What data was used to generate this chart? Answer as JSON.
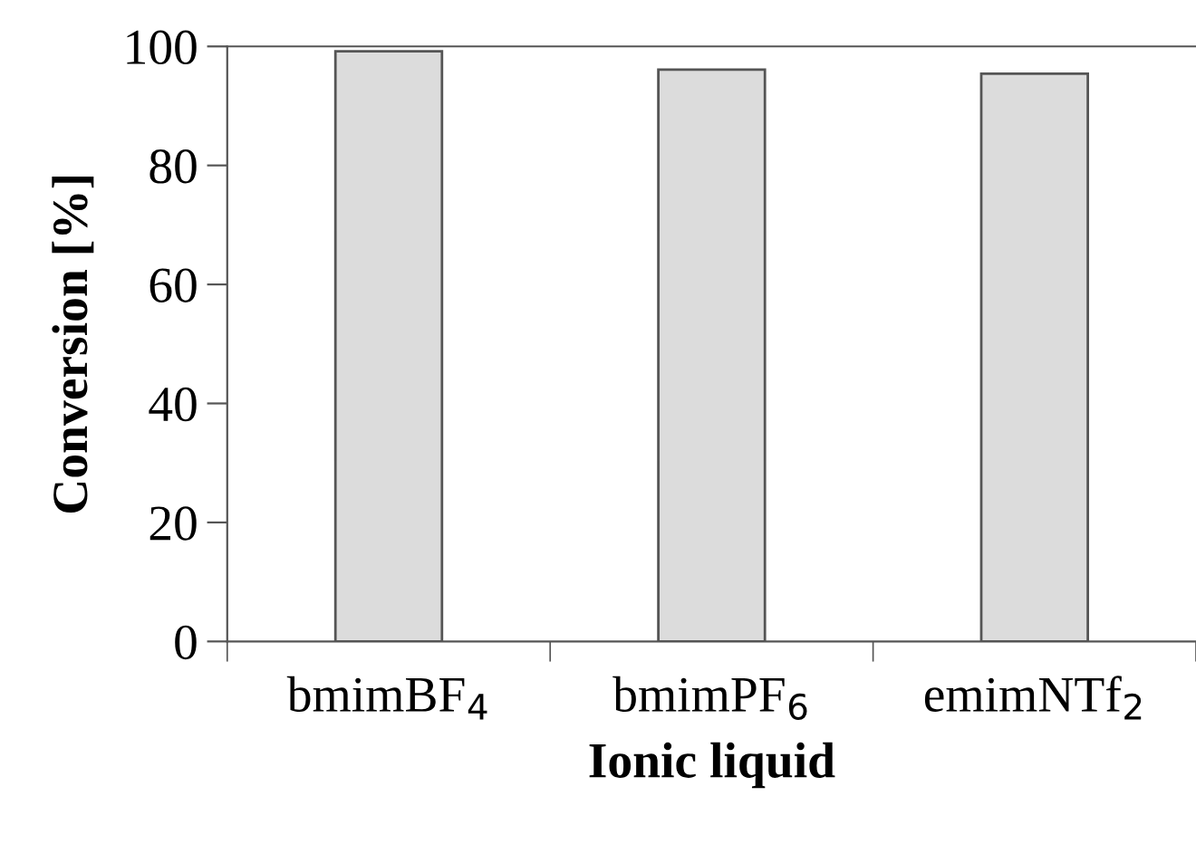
{
  "chart_data": {
    "type": "bar",
    "xlabel": "Ionic liquid",
    "ylabel": "Conversion [%]",
    "categories": [
      "bmimBF$_{4}$",
      "bmimPF$_{6}$",
      "emimNTf$_{2}$"
    ],
    "values": [
      99.2,
      96.1,
      95.4
    ],
    "color": "#dcdcdc",
    "ylim": [
      0,
      100
    ],
    "yticks": [
      0,
      20,
      40,
      60,
      80,
      100
    ],
    "grid": false
  }
}
